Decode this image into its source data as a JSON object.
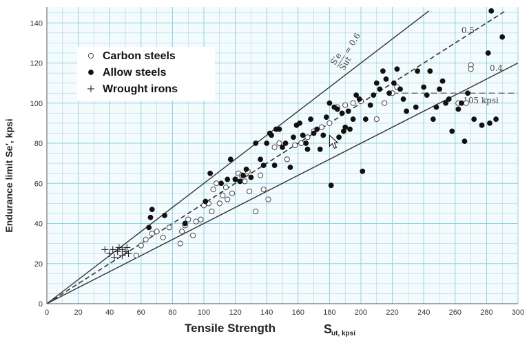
{
  "chart_data": {
    "type": "scatter",
    "xlabel": "Tensile Strength",
    "xlabel_symbol": "S",
    "xlabel_subscript": "ut, kpsi",
    "ylabel": "Endurance limit Se′, kpsi",
    "xlim": [
      0,
      300
    ],
    "ylim": [
      0,
      148
    ],
    "x_ticks": [
      0,
      20,
      40,
      60,
      80,
      100,
      120,
      140,
      160,
      180,
      200,
      220,
      240,
      260,
      280,
      300
    ],
    "y_ticks": [
      0,
      20,
      40,
      60,
      80,
      100,
      120,
      140
    ],
    "grid": true,
    "grid_color": "#8fd1de",
    "legend_placement": "top-left",
    "legend": [
      {
        "label": "Carbon steels",
        "marker": "open-circle"
      },
      {
        "label": "Allow steels",
        "marker": "filled-circle"
      },
      {
        "label": "Wrought irons",
        "marker": "plus"
      }
    ],
    "reference_lines": [
      {
        "slope": 0.6,
        "style": "solid",
        "label": "0.6",
        "ratio_label": {
          "num": "S′e",
          "den": "Sut",
          "eq": "= 0.6"
        }
      },
      {
        "slope": 0.5,
        "style": "dashed",
        "label": "0.5"
      },
      {
        "slope": 0.4,
        "style": "solid",
        "label": "0.4"
      }
    ],
    "annotation": {
      "text": "105 kpsi",
      "y": 105,
      "x_from": 220,
      "x_to": 300
    },
    "series": [
      {
        "name": "Carbon steels",
        "marker": "open-circle",
        "points": [
          [
            57,
            24
          ],
          [
            60,
            29
          ],
          [
            63,
            32
          ],
          [
            67,
            35
          ],
          [
            70,
            36
          ],
          [
            74,
            33
          ],
          [
            78,
            38
          ],
          [
            85,
            30
          ],
          [
            86,
            36
          ],
          [
            88,
            39
          ],
          [
            90,
            42
          ],
          [
            93,
            34
          ],
          [
            95,
            41
          ],
          [
            98,
            42
          ],
          [
            100,
            49
          ],
          [
            103,
            50
          ],
          [
            105,
            46
          ],
          [
            106,
            57
          ],
          [
            108,
            60
          ],
          [
            110,
            50
          ],
          [
            112,
            54
          ],
          [
            114,
            58
          ],
          [
            115,
            52
          ],
          [
            118,
            55
          ],
          [
            120,
            62
          ],
          [
            122,
            65
          ],
          [
            124,
            64
          ],
          [
            126,
            61
          ],
          [
            128,
            66
          ],
          [
            129,
            56
          ],
          [
            133,
            46
          ],
          [
            136,
            64
          ],
          [
            138,
            57
          ],
          [
            141,
            52
          ],
          [
            145,
            78
          ],
          [
            148,
            80
          ],
          [
            153,
            72
          ],
          [
            158,
            79
          ],
          [
            162,
            80
          ],
          [
            166,
            83
          ],
          [
            170,
            86
          ],
          [
            175,
            88
          ],
          [
            180,
            90
          ],
          [
            185,
            98
          ],
          [
            190,
            99
          ],
          [
            195,
            100
          ],
          [
            200,
            101
          ],
          [
            210,
            92
          ],
          [
            215,
            100
          ],
          [
            220,
            105
          ],
          [
            223,
            108
          ],
          [
            262,
            100
          ],
          [
            267,
            100
          ],
          [
            270,
            119
          ],
          [
            270,
            117
          ]
        ]
      },
      {
        "name": "Allow steels",
        "marker": "filled-circle",
        "points": [
          [
            65,
            38
          ],
          [
            66,
            43
          ],
          [
            67,
            47
          ],
          [
            75,
            44
          ],
          [
            88,
            40
          ],
          [
            101,
            51
          ],
          [
            104,
            65
          ],
          [
            111,
            60
          ],
          [
            115,
            62
          ],
          [
            117,
            72
          ],
          [
            120,
            62
          ],
          [
            123,
            61
          ],
          [
            125,
            64
          ],
          [
            127,
            67
          ],
          [
            130,
            63
          ],
          [
            133,
            80
          ],
          [
            136,
            72
          ],
          [
            138,
            69
          ],
          [
            140,
            80
          ],
          [
            142,
            85
          ],
          [
            143,
            84
          ],
          [
            145,
            69
          ],
          [
            146,
            87
          ],
          [
            148,
            87
          ],
          [
            150,
            78
          ],
          [
            152,
            80
          ],
          [
            155,
            68
          ],
          [
            157,
            83
          ],
          [
            159,
            89
          ],
          [
            161,
            90
          ],
          [
            163,
            84
          ],
          [
            165,
            80
          ],
          [
            166,
            77
          ],
          [
            168,
            92
          ],
          [
            170,
            85
          ],
          [
            172,
            87
          ],
          [
            174,
            77
          ],
          [
            176,
            84
          ],
          [
            178,
            93
          ],
          [
            180,
            100
          ],
          [
            181,
            59
          ],
          [
            183,
            98
          ],
          [
            185,
            97
          ],
          [
            186,
            83
          ],
          [
            188,
            95
          ],
          [
            189,
            86
          ],
          [
            190,
            88
          ],
          [
            192,
            96
          ],
          [
            193,
            87
          ],
          [
            195,
            92
          ],
          [
            197,
            104
          ],
          [
            199,
            102
          ],
          [
            201,
            66
          ],
          [
            203,
            92
          ],
          [
            206,
            99
          ],
          [
            208,
            104
          ],
          [
            210,
            110
          ],
          [
            212,
            107
          ],
          [
            214,
            116
          ],
          [
            216,
            112
          ],
          [
            218,
            105
          ],
          [
            221,
            110
          ],
          [
            223,
            117
          ],
          [
            225,
            107
          ],
          [
            227,
            102
          ],
          [
            229,
            96
          ],
          [
            235,
            98
          ],
          [
            236,
            116
          ],
          [
            240,
            108
          ],
          [
            242,
            104
          ],
          [
            244,
            116
          ],
          [
            246,
            92
          ],
          [
            248,
            98
          ],
          [
            250,
            107
          ],
          [
            252,
            111
          ],
          [
            254,
            100
          ],
          [
            256,
            102
          ],
          [
            258,
            86
          ],
          [
            262,
            97
          ],
          [
            264,
            100
          ],
          [
            266,
            81
          ],
          [
            268,
            105
          ],
          [
            272,
            92
          ],
          [
            277,
            89
          ],
          [
            281,
            125
          ],
          [
            282,
            90
          ],
          [
            283,
            146
          ],
          [
            286,
            92
          ],
          [
            290,
            133
          ]
        ]
      },
      {
        "name": "Wrought irons",
        "marker": "plus",
        "points": [
          [
            37,
            27
          ],
          [
            40,
            25
          ],
          [
            42,
            27
          ],
          [
            43,
            23
          ],
          [
            45,
            26
          ],
          [
            46,
            28
          ],
          [
            48,
            27
          ],
          [
            48,
            24
          ],
          [
            50,
            26
          ],
          [
            51,
            28
          ],
          [
            52,
            25
          ]
        ]
      }
    ]
  }
}
